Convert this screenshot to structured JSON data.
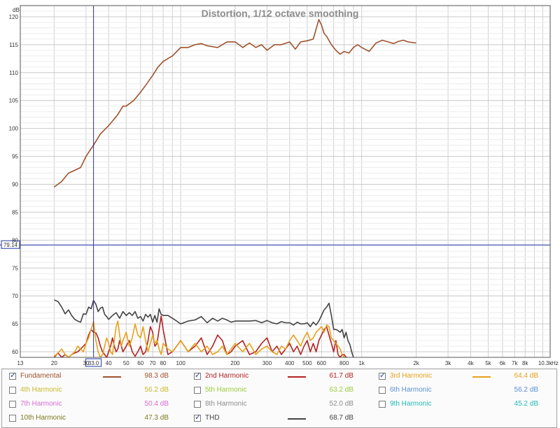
{
  "chart_data": {
    "type": "line",
    "title": "Distortion, 1/12 octave smoothing",
    "ylabel": "dB",
    "xscale": "log",
    "xlim": [
      13,
      11000
    ],
    "ylim": [
      59,
      122
    ],
    "grid": true,
    "x_tick_labels": [
      {
        "v": 13,
        "t": "13"
      },
      {
        "v": 20,
        "t": "20"
      },
      {
        "v": 30,
        "t": "30"
      },
      {
        "v": 40,
        "t": "40"
      },
      {
        "v": 50,
        "t": "50"
      },
      {
        "v": 60,
        "t": "60"
      },
      {
        "v": 70,
        "t": "70"
      },
      {
        "v": 80,
        "t": "80"
      },
      {
        "v": 100,
        "t": "100"
      },
      {
        "v": 200,
        "t": "200"
      },
      {
        "v": 300,
        "t": "300"
      },
      {
        "v": 400,
        "t": "400"
      },
      {
        "v": 500,
        "t": "500"
      },
      {
        "v": 600,
        "t": "600"
      },
      {
        "v": 800,
        "t": "800"
      },
      {
        "v": 1000,
        "t": "1k"
      },
      {
        "v": 2000,
        "t": "2k"
      },
      {
        "v": 3000,
        "t": "3k"
      },
      {
        "v": 4000,
        "t": "4k"
      },
      {
        "v": 5000,
        "t": "5k"
      },
      {
        "v": 6000,
        "t": "6k"
      },
      {
        "v": 7000,
        "t": "7k"
      },
      {
        "v": 8000,
        "t": "8k"
      },
      {
        "v": 10300,
        "t": "10.3k"
      }
    ],
    "x_unit": "Hz",
    "y_ticks": [
      60,
      65,
      70,
      75,
      80,
      85,
      90,
      95,
      100,
      105,
      110,
      115,
      120
    ],
    "cursor": {
      "x": 33.0,
      "y": 79.14,
      "x_label": "33.0",
      "y_label": "79.14"
    },
    "series": [
      {
        "name": "Fundamental",
        "color": "#a0522d",
        "x": [
          20,
          22,
          24,
          26,
          28,
          30,
          33,
          36,
          40,
          45,
          48,
          50,
          55,
          60,
          65,
          70,
          75,
          80,
          90,
          100,
          110,
          120,
          130,
          140,
          160,
          180,
          200,
          220,
          240,
          260,
          280,
          300,
          330,
          360,
          400,
          430,
          460,
          500,
          540,
          580,
          600,
          620,
          640,
          680,
          720,
          760,
          800,
          850,
          900,
          950,
          1000,
          1100,
          1200,
          1300,
          1400,
          1500,
          1600,
          1700,
          1800,
          2000
        ],
        "values": [
          89.5,
          90.5,
          92,
          92.5,
          93,
          95,
          97,
          99,
          100.5,
          102.5,
          104,
          104,
          105,
          106.5,
          108,
          109.5,
          111,
          112,
          113,
          114.5,
          114.5,
          115,
          115.2,
          114.8,
          114.5,
          115.5,
          115.5,
          114.5,
          115.3,
          114.5,
          115,
          114,
          115,
          115,
          115.5,
          114.2,
          115.5,
          115.7,
          116,
          119.5,
          118.5,
          117,
          116.5,
          115,
          114,
          113.3,
          113.8,
          113.5,
          114.5,
          115,
          114.5,
          113.8,
          115.3,
          115.8,
          115.5,
          115.2,
          115.6,
          115.8,
          115.5,
          115.3
        ]
      },
      {
        "name": "2nd Harmonic",
        "color": "#b22222",
        "x": [
          20,
          21,
          22,
          23,
          24,
          25,
          26,
          27,
          28,
          29,
          30,
          31,
          32,
          33,
          34,
          35,
          36,
          37,
          38,
          39,
          40,
          41,
          42,
          43,
          44,
          45,
          46,
          47,
          48,
          50,
          52,
          54,
          56,
          58,
          60,
          62,
          64,
          66,
          68,
          70,
          72,
          74,
          76,
          78,
          80,
          85,
          90,
          95,
          100,
          110,
          120,
          130,
          140,
          150,
          160,
          170,
          180,
          190,
          200,
          220,
          240,
          260,
          280,
          300,
          320,
          340,
          360,
          380,
          400,
          420,
          440,
          460,
          480,
          500,
          520,
          540,
          560,
          580,
          600,
          620,
          640,
          660,
          680,
          700,
          720,
          740,
          760,
          780,
          800,
          820,
          840
        ],
        "values": [
          59,
          59.8,
          59,
          59.5,
          59,
          59.5,
          59.8,
          60,
          60.5,
          61,
          61.5,
          63,
          64,
          63.5,
          63.4,
          62.5,
          61,
          60,
          59.5,
          59,
          60,
          61,
          62.5,
          61,
          60,
          60.5,
          62,
          61,
          60,
          61,
          62,
          60,
          59.2,
          60,
          61,
          59.5,
          60,
          62,
          64.5,
          63.5,
          61,
          61.5,
          64,
          66.4,
          64,
          59.5,
          60,
          61,
          62,
          60,
          61,
          62.5,
          59.5,
          61,
          63,
          62,
          59.5,
          60,
          61,
          62,
          59.5,
          60,
          61.5,
          62.5,
          60,
          61,
          59.5,
          60.5,
          61.5,
          60,
          61,
          59.5,
          61,
          62,
          60,
          61.5,
          60,
          62,
          63,
          64,
          64.5,
          63,
          61.5,
          60,
          62,
          59.5,
          59,
          59.5,
          59.5,
          59,
          59
        ]
      },
      {
        "name": "3rd Harmonic",
        "color": "#e8a11a",
        "x": [
          20,
          21,
          22,
          23,
          24,
          25,
          26,
          27,
          28,
          29,
          30,
          31,
          32,
          33,
          34,
          35,
          36,
          37,
          38,
          39,
          40,
          41,
          42,
          43,
          44,
          45,
          46,
          47,
          48,
          50,
          52,
          54,
          56,
          58,
          60,
          62,
          64,
          66,
          68,
          70,
          72,
          74,
          76,
          78,
          80,
          85,
          90,
          95,
          100,
          110,
          120,
          130,
          140,
          150,
          160,
          170,
          180,
          190,
          200,
          220,
          240,
          260,
          280,
          300,
          320,
          340,
          360,
          380,
          400,
          420,
          440,
          460,
          480,
          500,
          520,
          540,
          560,
          580,
          600,
          620,
          640,
          660,
          680,
          700,
          720,
          740,
          760,
          780,
          800
        ],
        "values": [
          59.2,
          59.8,
          60.5,
          59.5,
          59,
          59.5,
          60,
          61,
          60.5,
          60,
          61.5,
          62.5,
          64,
          65.4,
          62,
          60,
          59,
          59.5,
          61,
          62.5,
          61.5,
          60,
          59.5,
          62,
          64.5,
          65.5,
          63,
          61,
          62,
          63.5,
          61,
          62.5,
          65,
          63,
          62.5,
          64.5,
          62,
          60,
          61.5,
          63,
          61.5,
          62,
          60.5,
          59.5,
          61.5,
          60.5,
          60,
          61,
          62,
          60,
          61.5,
          60,
          61,
          59.5,
          60,
          61,
          59.5,
          60.5,
          61.5,
          60,
          61.5,
          59.5,
          60.5,
          61,
          60,
          59.5,
          61,
          60.5,
          62,
          63,
          62,
          61,
          62.5,
          63.5,
          62,
          62.5,
          63.5,
          64,
          64.5,
          63.5,
          64.8,
          64.5,
          62.5,
          62,
          61.5,
          61,
          60.5,
          59.5,
          59
        ]
      },
      {
        "name": "THD",
        "color": "#444444",
        "x": [
          20,
          21,
          22,
          23,
          24,
          25,
          26,
          27,
          28,
          29,
          30,
          31,
          32,
          33,
          34,
          35,
          36,
          37,
          38,
          39,
          40,
          42,
          44,
          46,
          48,
          50,
          52,
          54,
          56,
          58,
          60,
          62,
          64,
          66,
          68,
          70,
          72,
          74,
          76,
          78,
          80,
          85,
          90,
          95,
          100,
          110,
          120,
          130,
          140,
          150,
          160,
          170,
          180,
          190,
          200,
          220,
          240,
          260,
          280,
          300,
          320,
          340,
          360,
          380,
          400,
          420,
          440,
          460,
          480,
          500,
          520,
          540,
          560,
          580,
          600,
          620,
          640,
          660,
          680,
          700,
          720,
          740,
          760,
          780,
          800,
          820,
          840,
          860,
          880,
          900
        ],
        "values": [
          69.3,
          69,
          68,
          66.8,
          67.5,
          66.5,
          65.8,
          65.5,
          65.3,
          66.8,
          66.7,
          68,
          67.7,
          69.2,
          68.5,
          67.2,
          67.8,
          68,
          66.7,
          66.3,
          65.8,
          66.5,
          67,
          66,
          67.2,
          66.5,
          67,
          66.5,
          67.2,
          66,
          66.3,
          65.5,
          66.7,
          66.2,
          66.7,
          65.3,
          66.5,
          65.3,
          67.7,
          66.7,
          66.5,
          66.5,
          66,
          65.5,
          65,
          65.5,
          65.7,
          66.3,
          65.2,
          66,
          65.5,
          66,
          65.7,
          65.3,
          65.5,
          65.5,
          65.5,
          65.6,
          65.2,
          65.6,
          65.2,
          65,
          65.4,
          65.2,
          65.2,
          64.8,
          65.3,
          65,
          65,
          65.2,
          64.5,
          65.3,
          64.8,
          65.5,
          66.5,
          67.5,
          68,
          68.7,
          66.5,
          64,
          64,
          63.8,
          63.5,
          64,
          62.5,
          63.5,
          62,
          61.3,
          60,
          59
        ]
      }
    ]
  },
  "legend": [
    [
      {
        "name": "Fundamental",
        "value": "98.3 dB",
        "checked": true,
        "color": "#a0522d",
        "swatch": true
      },
      {
        "name": "2nd Harmonic",
        "value": "61.7 dB",
        "checked": true,
        "color": "#b22222",
        "swatch": true
      },
      {
        "name": "3rd Harmonic",
        "value": "64.4 dB",
        "checked": true,
        "color": "#e8a11a",
        "swatch": true
      }
    ],
    [
      {
        "name": "4th Harmonic",
        "value": "56.2 dB",
        "checked": false,
        "color": "#c7b92c",
        "swatch": false
      },
      {
        "name": "5th Harmonic",
        "value": "63.2 dB",
        "checked": false,
        "color": "#9ccc3a",
        "swatch": false
      },
      {
        "name": "6th Harmonic",
        "value": "56.2 dB",
        "checked": false,
        "color": "#5b8fd8",
        "swatch": false
      }
    ],
    [
      {
        "name": "7th Harmonic",
        "value": "50.4 dB",
        "checked": false,
        "color": "#d86ad8",
        "swatch": false
      },
      {
        "name": "8th Harmonic",
        "value": "52.0 dB",
        "checked": false,
        "color": "#8c8c8c",
        "swatch": false
      },
      {
        "name": "9th Harmonic",
        "value": "45.2 dB",
        "checked": false,
        "color": "#22b8b8",
        "swatch": false
      }
    ],
    [
      {
        "name": "10th Harmonic",
        "value": "47.3 dB",
        "checked": false,
        "color": "#7a7a1e",
        "swatch": false
      },
      {
        "name": "THD",
        "value": "68.7 dB",
        "checked": true,
        "color": "#444444",
        "swatch": true
      }
    ]
  ],
  "check_glyph": "✓"
}
